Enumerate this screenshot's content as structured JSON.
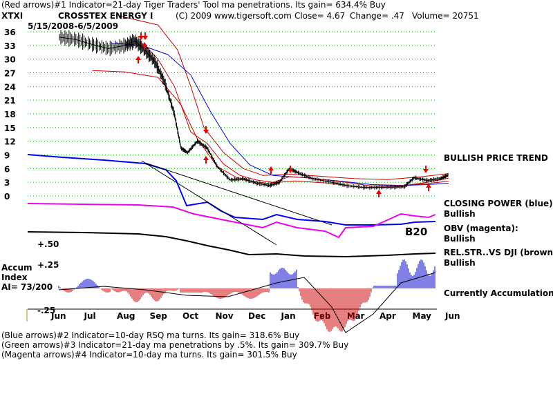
{
  "header": {
    "line1": "(Red arrows)#1 Indicator=21-day Tiger Traders' Tool ma penetrations. Its gain= 634.4% Buy",
    "ticker": "XTXI",
    "company": "CROSSTEX ENERGY I",
    "copyright": "(C) 2009 www.tigersoft.com",
    "close": "Close=  4.67",
    "change": "Change= .47",
    "volume": "Volume=  20751",
    "date_range": "5/15/2008-6/5/2009"
  },
  "footer": {
    "line1": "(Blue arrows)#2 Indicator=10-day RSQ ma turns. Its gain= 318.6% Buy",
    "line2": "(Green arrows)#3 Indicator=21-day ma penetrations by .5%. Its gain= 309.7% Buy",
    "line3": "(Magenta arrows)#4 Indicator=10-day ma turns. Its gain= 301.5% Buy"
  },
  "right_labels": {
    "trend": "BULLISH PRICE TREND",
    "closing_power": "CLOSING POWER (blue):",
    "closing_power_status": "Bullish",
    "obv": "OBV (magenta):",
    "obv_status": "Bullish",
    "relstr": "REL.STR..VS DJI (brown):",
    "relstr_status": "Bullish",
    "accum_status": "Currently Accumulation"
  },
  "left_labels": {
    "accum": "Accum",
    "index": "Index",
    "ai": "AI= 73/200",
    "upper": "+.50",
    "mid": "+.25",
    "lower": "-.25"
  },
  "colors": {
    "price": "#000000",
    "ma_red": "#cc0000",
    "ma_blue": "#0000dd",
    "closing_power": "#0000ff",
    "obv": "#ee00ee",
    "relstr": "#000000",
    "accum_pos": "#0000cc",
    "accum_neg": "#cc0000",
    "grid": "#00aa00",
    "arrow": "#ee0000"
  },
  "chart_data": {
    "type": "line",
    "yticks": [
      0,
      3,
      6,
      9,
      12,
      15,
      18,
      21,
      24,
      27,
      30,
      33,
      36
    ],
    "ylim": [
      0,
      37
    ],
    "months": [
      "Jun",
      "Jul",
      "Aug",
      "Sep",
      "Oct",
      "Nov",
      "Dec",
      "Jan",
      "Feb",
      "Mar",
      "Apr",
      "May",
      "Jun"
    ],
    "price": [
      {
        "t": 0,
        "v": 34.8
      },
      {
        "t": 0.5,
        "v": 34.3
      },
      {
        "t": 1.0,
        "v": 33.2
      },
      {
        "t": 1.5,
        "v": 32.3
      },
      {
        "t": 2.0,
        "v": 33.0
      },
      {
        "t": 2.3,
        "v": 34.0
      },
      {
        "t": 2.6,
        "v": 32.0
      },
      {
        "t": 2.9,
        "v": 29.5
      },
      {
        "t": 3.2,
        "v": 25.0
      },
      {
        "t": 3.5,
        "v": 18.0
      },
      {
        "t": 3.7,
        "v": 10.5
      },
      {
        "t": 3.9,
        "v": 9.5
      },
      {
        "t": 4.2,
        "v": 12.0
      },
      {
        "t": 4.5,
        "v": 10.5
      },
      {
        "t": 4.8,
        "v": 6.5
      },
      {
        "t": 5.2,
        "v": 3.5
      },
      {
        "t": 5.6,
        "v": 3.8
      },
      {
        "t": 6.0,
        "v": 2.8
      },
      {
        "t": 6.4,
        "v": 2.3
      },
      {
        "t": 6.7,
        "v": 3.0
      },
      {
        "t": 7.0,
        "v": 6.0
      },
      {
        "t": 7.3,
        "v": 5.0
      },
      {
        "t": 7.7,
        "v": 3.8
      },
      {
        "t": 8.3,
        "v": 3.0
      },
      {
        "t": 8.8,
        "v": 2.2
      },
      {
        "t": 9.4,
        "v": 1.8
      },
      {
        "t": 10.0,
        "v": 1.9
      },
      {
        "t": 10.5,
        "v": 2.0
      },
      {
        "t": 10.8,
        "v": 4.0
      },
      {
        "t": 11.2,
        "v": 3.4
      },
      {
        "t": 11.6,
        "v": 3.8
      },
      {
        "t": 11.85,
        "v": 4.6
      }
    ],
    "ma_short": [
      {
        "t": 2.0,
        "v": 33.0
      },
      {
        "t": 2.6,
        "v": 33.0
      },
      {
        "t": 3.0,
        "v": 30.0
      },
      {
        "t": 3.5,
        "v": 24.0
      },
      {
        "t": 4.0,
        "v": 14.0
      },
      {
        "t": 4.5,
        "v": 11.5
      },
      {
        "t": 5.0,
        "v": 7.0
      },
      {
        "t": 5.5,
        "v": 4.5
      },
      {
        "t": 6.0,
        "v": 3.5
      },
      {
        "t": 6.5,
        "v": 3.0
      },
      {
        "t": 7.0,
        "v": 4.2
      },
      {
        "t": 7.5,
        "v": 4.0
      },
      {
        "t": 8.5,
        "v": 3.2
      },
      {
        "t": 9.5,
        "v": 2.2
      },
      {
        "t": 10.5,
        "v": 2.3
      },
      {
        "t": 11.2,
        "v": 3.0
      },
      {
        "t": 11.85,
        "v": 3.9
      }
    ],
    "band_upper": [
      {
        "t": 1.8,
        "v": 39.5
      },
      {
        "t": 3.0,
        "v": 37.5
      },
      {
        "t": 3.6,
        "v": 32.0
      },
      {
        "t": 4.0,
        "v": 24.0
      },
      {
        "t": 4.4,
        "v": 15.0
      },
      {
        "t": 5.0,
        "v": 9.5
      },
      {
        "t": 5.6,
        "v": 6.0
      },
      {
        "t": 6.2,
        "v": 4.5
      },
      {
        "t": 7.0,
        "v": 4.8
      },
      {
        "t": 8.0,
        "v": 4.3
      },
      {
        "t": 9.0,
        "v": 3.8
      },
      {
        "t": 10.0,
        "v": 3.6
      },
      {
        "t": 11.0,
        "v": 4.2
      },
      {
        "t": 11.85,
        "v": 4.9
      }
    ],
    "band_lower": [
      {
        "t": 1.0,
        "v": 27.5
      },
      {
        "t": 2.0,
        "v": 27.2
      },
      {
        "t": 3.0,
        "v": 26.0
      },
      {
        "t": 3.7,
        "v": 20.0
      },
      {
        "t": 4.2,
        "v": 12.5
      },
      {
        "t": 4.8,
        "v": 6.5
      },
      {
        "t": 5.5,
        "v": 3.6
      },
      {
        "t": 6.3,
        "v": 2.8
      },
      {
        "t": 7.2,
        "v": 3.3
      },
      {
        "t": 8.2,
        "v": 2.8
      },
      {
        "t": 9.2,
        "v": 1.9
      },
      {
        "t": 10.2,
        "v": 2.0
      },
      {
        "t": 11.0,
        "v": 2.6
      },
      {
        "t": 11.85,
        "v": 3.2
      }
    ],
    "ma_long": [
      {
        "t": 1.6,
        "v": 33.5
      },
      {
        "t": 2.5,
        "v": 33.0
      },
      {
        "t": 3.3,
        "v": 31.0
      },
      {
        "t": 4.0,
        "v": 26.5
      },
      {
        "t": 4.6,
        "v": 18.5
      },
      {
        "t": 5.2,
        "v": 11.5
      },
      {
        "t": 5.8,
        "v": 6.8
      },
      {
        "t": 6.5,
        "v": 4.5
      },
      {
        "t": 7.5,
        "v": 4.0
      },
      {
        "t": 8.5,
        "v": 3.3
      },
      {
        "t": 9.5,
        "v": 2.5
      },
      {
        "t": 10.5,
        "v": 2.3
      },
      {
        "t": 11.2,
        "v": 2.5
      },
      {
        "t": 11.85,
        "v": 2.8
      }
    ],
    "annotation": "B20"
  }
}
